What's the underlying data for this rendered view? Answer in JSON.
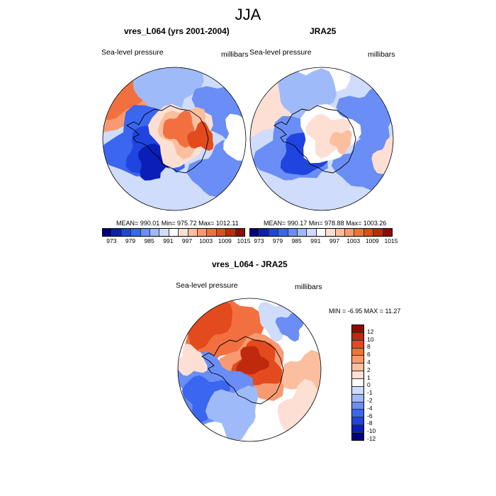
{
  "title": "JJA",
  "panels": {
    "model": {
      "title": "vres_L064 (yrs 2001-2004)",
      "left_label": "Sea-level pressure",
      "right_label": "millibars",
      "stats": "MEAN= 990.01  Min= 975.72  Max= 1012.11"
    },
    "reanalysis": {
      "title": "JRA25",
      "left_label": "Sea-level pressure",
      "right_label": "millibars",
      "stats": "MEAN= 990.17  Min= 978.88  Max= 1003.26"
    },
    "difference": {
      "title": "vres_L064 - JRA25",
      "left_label": "Sea-level pressure",
      "right_label": "millibars",
      "stats": "MIN =  -6.95 MAX =  11.27"
    }
  },
  "colors": {
    "abs_scale": [
      "#00007f",
      "#0a1fb8",
      "#1f44e0",
      "#3a66f0",
      "#6a8ef5",
      "#9fbaf9",
      "#cfdcfc",
      "#ffffff",
      "#fde0d3",
      "#fbbf9f",
      "#f79a72",
      "#f2703f",
      "#e34a1d",
      "#c02a0c",
      "#8f0a02"
    ],
    "diff_scale": [
      "#00007f",
      "#0a1fb8",
      "#1f44e0",
      "#3a66f0",
      "#6a8ef5",
      "#9fbaf9",
      "#cfdcfc",
      "#ffffff",
      "#fde0d3",
      "#fbbf9f",
      "#f79a72",
      "#f2703f",
      "#e34a1d",
      "#c02a0c",
      "#8f0a02"
    ],
    "coastline": "#000000"
  },
  "chart_data": [
    {
      "type": "heatmap",
      "title": "vres_L064 (yrs 2001-2004)",
      "variable": "Sea-level pressure",
      "units": "millibars",
      "projection": "south polar stereographic",
      "mean": 990.01,
      "min": 975.72,
      "max": 1012.11,
      "colorbar_ticks": [
        "973",
        "979",
        "985",
        "991",
        "997",
        "1003",
        "1009",
        "1015"
      ]
    },
    {
      "type": "heatmap",
      "title": "JRA25",
      "variable": "Sea-level pressure",
      "units": "millibars",
      "projection": "south polar stereographic",
      "mean": 990.17,
      "min": 978.88,
      "max": 1003.26,
      "colorbar_ticks": [
        "973",
        "979",
        "985",
        "991",
        "997",
        "1003",
        "1009",
        "1015"
      ]
    },
    {
      "type": "heatmap",
      "title": "vres_L064 - JRA25",
      "variable": "Sea-level pressure",
      "units": "millibars",
      "projection": "south polar stereographic",
      "min": -6.95,
      "max": 11.27,
      "colorbar_ticks": [
        "12",
        "10",
        "8",
        "6",
        "4",
        "2",
        "1",
        "0",
        "-1",
        "-2",
        "-4",
        "-6",
        "-8",
        "-10",
        "-12"
      ]
    }
  ]
}
